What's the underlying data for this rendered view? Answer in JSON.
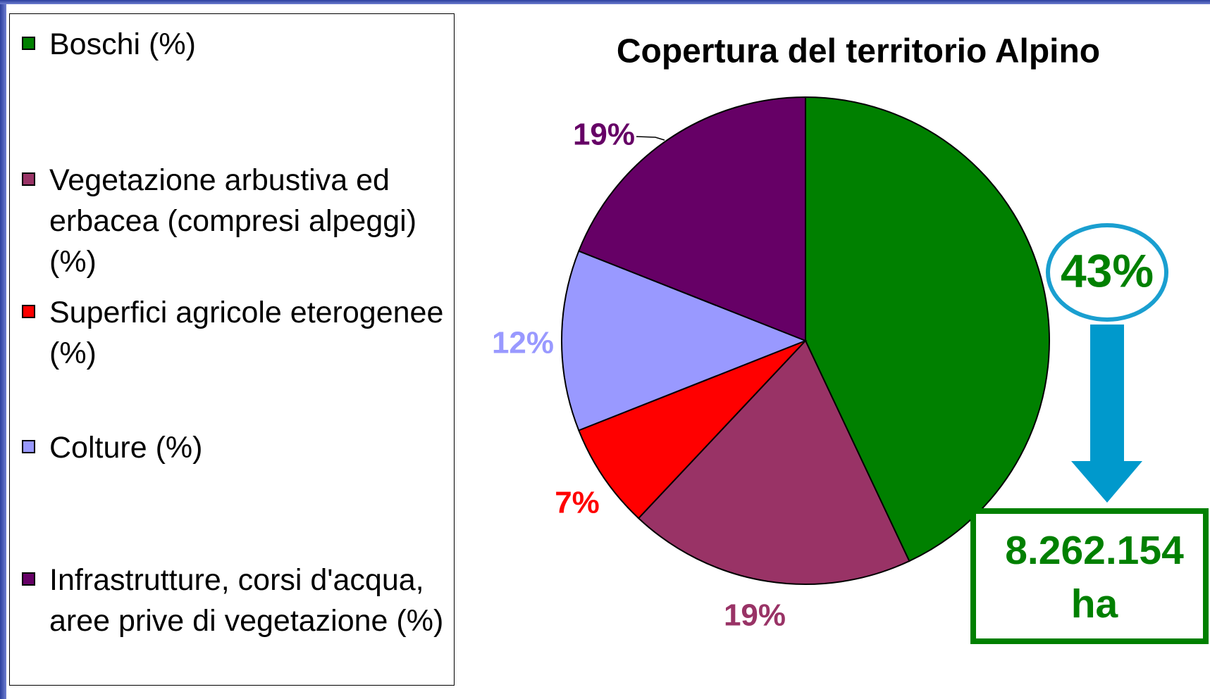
{
  "chart_data": {
    "type": "pie",
    "title": "Copertura del territorio Alpino",
    "categories": [
      "Boschi (%)",
      "Vegetazione arbustiva ed erbacea (compresi alpeggi) (%)",
      "Superfici agricole eterogenee (%)",
      "Colture (%)",
      "Infrastrutture, corsi d'acqua, aree prive di vegetazione (%)"
    ],
    "values": [
      43,
      19,
      7,
      12,
      19
    ],
    "value_labels": [
      "43%",
      "19%",
      "7%",
      "12%",
      "19%"
    ],
    "colors": [
      "#008000",
      "#993366",
      "#ff0000",
      "#9999ff",
      "#660066"
    ],
    "annotation_lines": [
      "8.262.154",
      "ha"
    ]
  }
}
